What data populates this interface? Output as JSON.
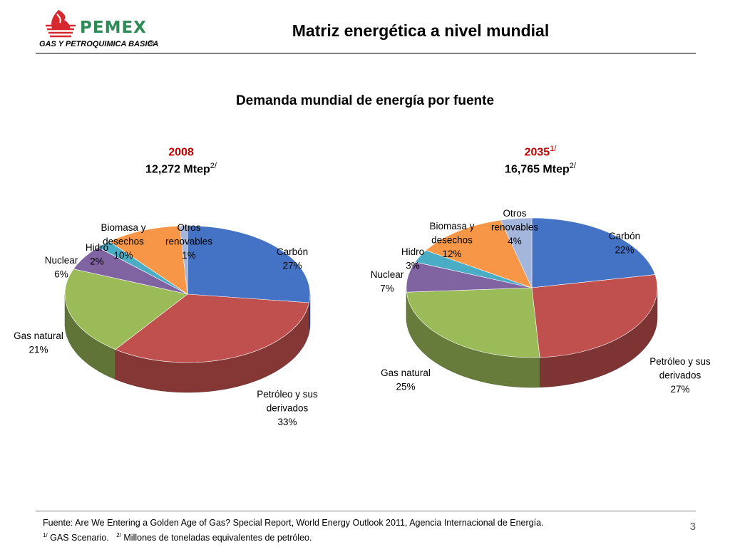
{
  "header": {
    "logo_text": "PEMEX",
    "logo_subtitle": "GAS Y PETROQUIMICA BASICA",
    "logo_registered": "®",
    "title": "Matriz energética a nivel mundial"
  },
  "chart_title": "Demanda mundial de energía por fuente",
  "chart_data": [
    {
      "type": "pie",
      "year": "2008",
      "year_sup": "",
      "total": "12,272 Mtep",
      "total_sup": "2/",
      "categories": [
        "Carbón",
        "Petróleo y sus derivados",
        "Gas natural",
        "Nuclear",
        "Hidro",
        "Biomasa y desechos",
        "Otros renovables"
      ],
      "values": [
        27,
        33,
        21,
        6,
        2,
        10,
        1
      ],
      "labels": [
        "27%",
        "33%",
        "21%",
        "6%",
        "2%",
        "10%",
        "1%"
      ],
      "colors": [
        "#4472c4",
        "#c0504d",
        "#9bbb59",
        "#8064a2",
        "#4bacc6",
        "#f79646",
        "#a5b6dc"
      ]
    },
    {
      "type": "pie",
      "year": "2035",
      "year_sup": "1/",
      "total": "16,765 Mtep",
      "total_sup": "2/",
      "categories": [
        "Carbón",
        "Petróleo y sus derivados",
        "Gas natural",
        "Nuclear",
        "Hidro",
        "Biomasa y desechos",
        "Otros renovables"
      ],
      "values": [
        22,
        27,
        25,
        7,
        3,
        12,
        4
      ],
      "labels": [
        "22%",
        "27%",
        "25%",
        "7%",
        "3%",
        "12%",
        "4%"
      ],
      "colors": [
        "#4472c4",
        "#c0504d",
        "#9bbb59",
        "#8064a2",
        "#4bacc6",
        "#f79646",
        "#a5b6dc"
      ]
    }
  ],
  "footer": {
    "source": "Fuente: Are We Entering a Golden Age of Gas? Special Report, World Energy Outlook 2011, Agencia Internacional  de Energía.",
    "note1_mark": "1/",
    "note1_text": " GAS Scenario.",
    "note2_mark": "2/",
    "note2_text": " Millones de toneladas equivalentes de petróleo."
  },
  "page_number": "3"
}
